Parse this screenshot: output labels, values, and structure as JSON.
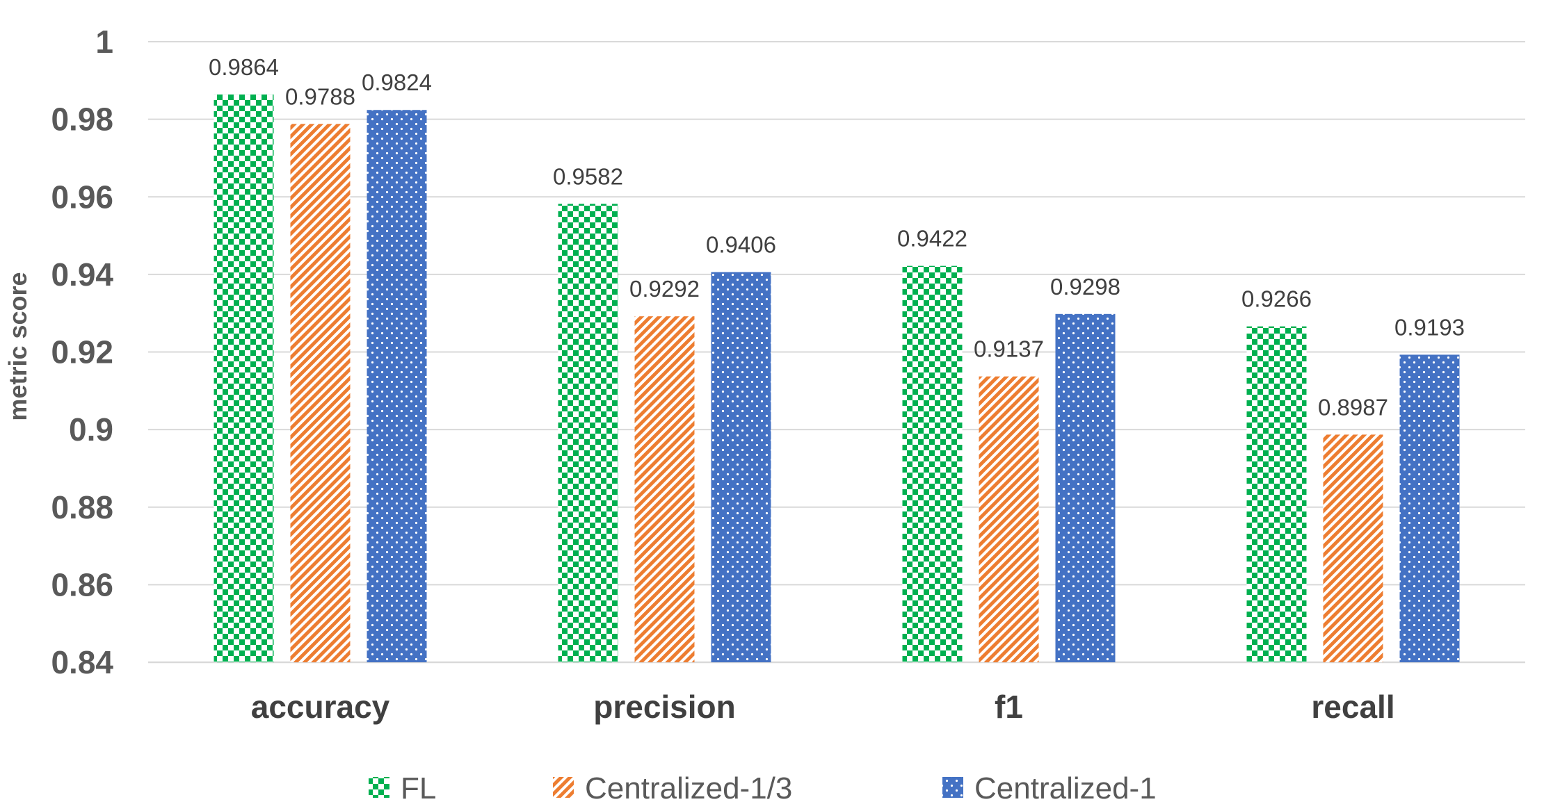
{
  "chart_data": {
    "type": "bar",
    "ylabel": "metric score",
    "ylim": [
      0.84,
      1
    ],
    "yticks": [
      0.84,
      0.86,
      0.88,
      0.9,
      0.92,
      0.94,
      0.96,
      0.98,
      1
    ],
    "ytick_labels": [
      "0.84",
      "0.86",
      "0.88",
      "0.9",
      "0.92",
      "0.94",
      "0.96",
      "0.98",
      "1"
    ],
    "grid": true,
    "legend_position": "bottom",
    "categories": [
      "accuracy",
      "precision",
      "f1",
      "recall"
    ],
    "series": [
      {
        "name": "FL",
        "values": [
          0.9864,
          0.9582,
          0.9422,
          0.9266
        ],
        "labels": [
          "0.9864",
          "0.9582",
          "0.9422",
          "0.9266"
        ],
        "color": "#00b050",
        "pattern": "checkerboard"
      },
      {
        "name": "Centralized-1/3",
        "values": [
          0.9788,
          0.9292,
          0.9137,
          0.8987
        ],
        "labels": [
          "0.9788",
          "0.9292",
          "0.9137",
          "0.8987"
        ],
        "color": "#ed7d31",
        "pattern": "diagonal-stripes"
      },
      {
        "name": "Centralized-1",
        "values": [
          0.9824,
          0.9406,
          0.9298,
          0.9193
        ],
        "labels": [
          "0.9824",
          "0.9406",
          "0.9298",
          "0.9193"
        ],
        "color": "#4472c4",
        "pattern": "dots"
      }
    ]
  }
}
